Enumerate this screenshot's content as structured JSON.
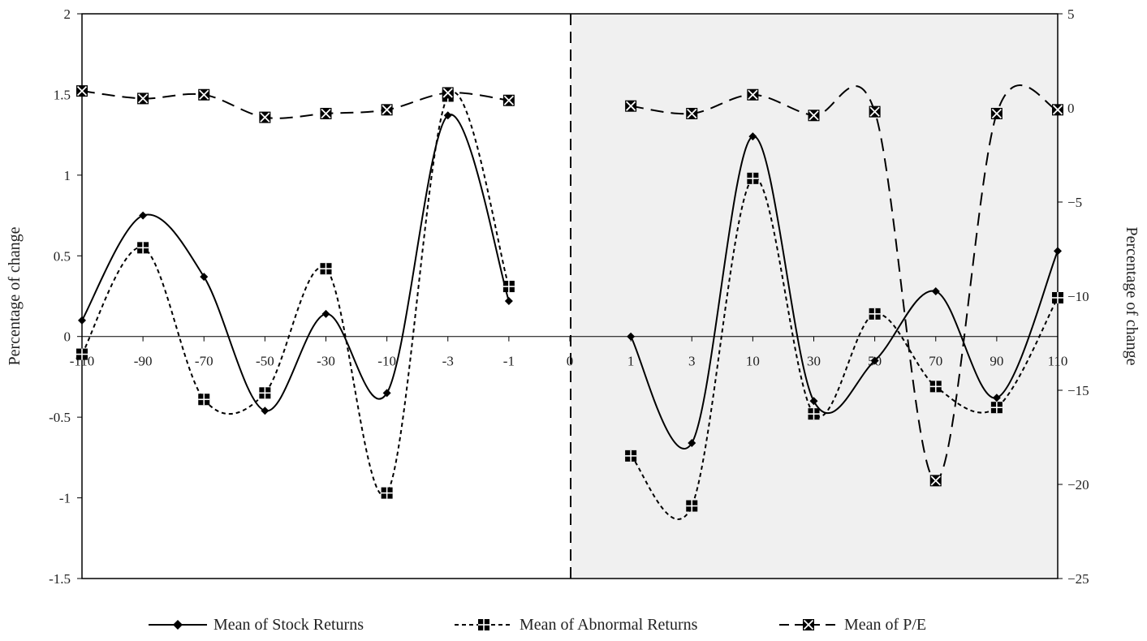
{
  "chart_data": {
    "type": "line",
    "categories": [
      "-110",
      "-90",
      "-70",
      "-50",
      "-30",
      "-10",
      "-3",
      "-1",
      "0",
      "1",
      "3",
      "10",
      "30",
      "50",
      "70",
      "90",
      "110"
    ],
    "ylabel_left": "Percentage of change",
    "ylabel_right": "Percentage of change",
    "ylim_left": [
      -1.5,
      2
    ],
    "ylim_right": [
      -25,
      5
    ],
    "left_ticks": [
      "2",
      "1.5",
      "1",
      "0.5",
      "0",
      "-0.5",
      "-1",
      "-1.5"
    ],
    "right_ticks": [
      "5",
      "0",
      "-5",
      "-10",
      "-15",
      "-20",
      "-25"
    ],
    "shaded_region": "post-event (days 1 to 110)",
    "legend_position": "bottom",
    "series": [
      {
        "name": "Mean of Stock Returns",
        "axis": "left",
        "line": "solid",
        "marker": "diamond",
        "pre": [
          0.1,
          0.75,
          0.37,
          -0.46,
          0.14,
          -0.35,
          1.37,
          0.22
        ],
        "post": [
          0.0,
          -0.66,
          1.24,
          -0.4,
          -0.15,
          0.28,
          -0.38,
          0.53
        ]
      },
      {
        "name": "Mean of Abnormal Returns",
        "axis": "left",
        "line": "dotted",
        "marker": "square-plus",
        "pre": [
          -0.11,
          0.55,
          -0.39,
          -0.35,
          0.42,
          -0.97,
          1.49,
          0.31
        ],
        "post": [
          -0.74,
          -1.05,
          0.98,
          -0.48,
          0.14,
          -0.31,
          -0.44,
          0.24
        ]
      },
      {
        "name": "Mean of P/E",
        "axis": "right",
        "line": "dashed",
        "marker": "square-x",
        "pre": [
          0.9,
          0.5,
          0.7,
          -0.5,
          -0.3,
          -0.1,
          0.8,
          0.4
        ],
        "post": [
          0.1,
          -0.3,
          0.7,
          -0.4,
          -0.2,
          -19.8,
          -0.3,
          -0.1
        ]
      }
    ]
  }
}
